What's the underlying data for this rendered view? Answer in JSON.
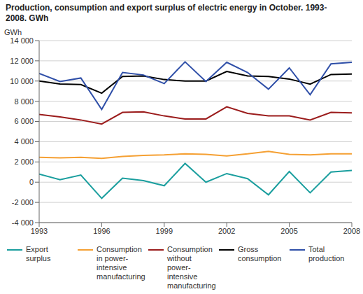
{
  "chart_data": {
    "type": "line",
    "title": "Production, consumption and export surplus of electric energy in October. 1993-2008. GWh",
    "y_label": "GWh",
    "x": [
      1993,
      1994,
      1995,
      1996,
      1997,
      1998,
      1999,
      2000,
      2001,
      2002,
      2003,
      2004,
      2005,
      2006,
      2007,
      2008
    ],
    "xlim": [
      1993,
      2008
    ],
    "xticks": [
      1993,
      1996,
      1999,
      2002,
      2005,
      2008
    ],
    "ylim": [
      -4000,
      14000
    ],
    "yticks": [
      {
        "value": -4000,
        "label": "-4 000"
      },
      {
        "value": -2000,
        "label": "-2 000"
      },
      0,
      {
        "value": 2000,
        "label": "2 000"
      },
      {
        "value": 4000,
        "label": "4 000"
      },
      {
        "value": 6000,
        "label": "6 000"
      },
      {
        "value": 8000,
        "label": "8 000"
      },
      {
        "value": 10000,
        "label": "10 000"
      },
      {
        "value": 12000,
        "label": "12 000"
      },
      {
        "value": 14000,
        "label": "14 000"
      }
    ],
    "grid": true,
    "legend": "bottom",
    "series": [
      {
        "name": "Export surplus",
        "color": "#1a9e9e",
        "values": [
          800,
          250,
          700,
          -1600,
          400,
          150,
          -350,
          1850,
          0,
          850,
          350,
          -1250,
          1050,
          -1050,
          1000,
          1150
        ]
      },
      {
        "name": "Consumption in power-intensive manufacturing",
        "color": "#f5a033",
        "values": [
          2450,
          2400,
          2450,
          2350,
          2550,
          2650,
          2700,
          2800,
          2750,
          2600,
          2800,
          3050,
          2750,
          2700,
          2800,
          2800
        ]
      },
      {
        "name": "Consumption without power-intensive manufacturing",
        "color": "#9b1c1c",
        "values": [
          6700,
          6450,
          6150,
          5750,
          6900,
          6950,
          6550,
          6250,
          6250,
          7450,
          6800,
          6550,
          6550,
          6150,
          6900,
          6850
        ]
      },
      {
        "name": "Gross consumption",
        "color": "#000000",
        "values": [
          10000,
          9700,
          9650,
          8800,
          10450,
          10500,
          10150,
          10000,
          10000,
          10950,
          10500,
          10450,
          10200,
          9700,
          10650,
          10700
        ]
      },
      {
        "name": "Total production",
        "color": "#2f4fa8",
        "values": [
          10750,
          9950,
          10300,
          7200,
          10850,
          10600,
          9750,
          11900,
          9950,
          11850,
          10850,
          9200,
          11300,
          8650,
          11700,
          11850
        ]
      }
    ]
  }
}
